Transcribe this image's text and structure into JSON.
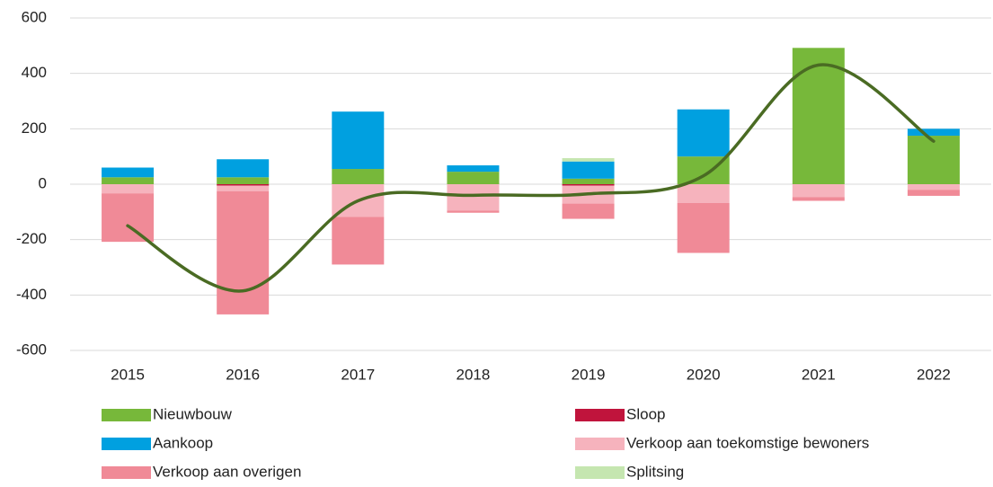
{
  "chart_data": {
    "type": "bar",
    "stacked": true,
    "categories": [
      "2015",
      "2016",
      "2017",
      "2018",
      "2019",
      "2020",
      "2021",
      "2022"
    ],
    "series": [
      {
        "name": "Nieuwbouw",
        "color": "#77b83a",
        "values": [
          25,
          25,
          55,
          45,
          20,
          100,
          492,
          175
        ]
      },
      {
        "name": "Sloop",
        "color": "#c0143c",
        "values": [
          0,
          -5,
          0,
          0,
          -5,
          0,
          0,
          0
        ]
      },
      {
        "name": "Aankoop",
        "color": "#00a0e0",
        "values": [
          35,
          65,
          207,
          23,
          62,
          170,
          0,
          25
        ]
      },
      {
        "name": "Verkoop aan toekomstige bewoners",
        "color": "#f6b3bd",
        "values": [
          -33,
          -20,
          -118,
          -95,
          -65,
          -68,
          -47,
          -20
        ]
      },
      {
        "name": "Verkoop aan overigen",
        "color": "#f08a97",
        "values": [
          -175,
          -445,
          -172,
          -8,
          -55,
          -180,
          -13,
          -22
        ]
      },
      {
        "name": "Splitsing",
        "color": "#c5e6b0",
        "values": [
          0,
          0,
          0,
          0,
          12,
          0,
          0,
          0
        ]
      }
    ],
    "line": {
      "color": "#4a6b23",
      "values": [
        -150,
        -385,
        -60,
        -40,
        -35,
        30,
        430,
        155
      ]
    },
    "ylim": [
      -600,
      600
    ],
    "yticks": [
      -600,
      -400,
      -200,
      0,
      200,
      400,
      600
    ],
    "grid": true
  }
}
